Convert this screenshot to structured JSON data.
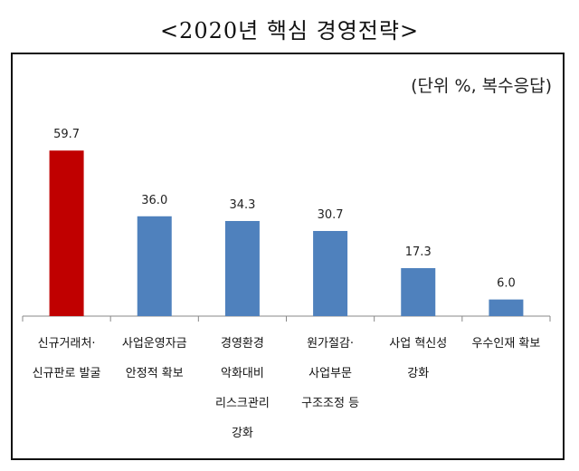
{
  "title": "<2020년 핵심 경영전략>",
  "unit_note": "(단위 %, 복수응답)",
  "colors": {
    "highlight": "#c00000",
    "bar": "#4f81bd",
    "axis": "#888888"
  },
  "chart_data": {
    "type": "bar",
    "title": "<2020년 핵심 경영전략>",
    "xlabel": "",
    "ylabel": "",
    "ylim": [
      0,
      65
    ],
    "grid": false,
    "categories": [
      [
        "신규거래처·",
        "신규판로 발굴"
      ],
      [
        "사업운영자금",
        "안정적 확보"
      ],
      [
        "경영환경",
        "악화대비",
        "리스크관리",
        "강화"
      ],
      [
        "원가절감·",
        "사업부문",
        "구조조정 등"
      ],
      [
        "사업 혁신성",
        "강화"
      ],
      [
        "우수인재 확보"
      ]
    ],
    "values": [
      59.7,
      36.0,
      34.3,
      30.7,
      17.3,
      6.0
    ],
    "value_labels": [
      "59.7",
      "36.0",
      "34.3",
      "30.7",
      "17.3",
      "6.0"
    ],
    "highlight_index": 0
  }
}
